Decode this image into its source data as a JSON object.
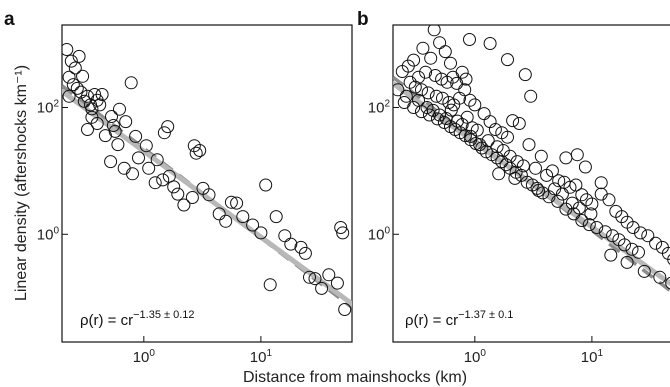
{
  "chart_data": [
    {
      "type": "scatter",
      "panel": "a",
      "xscale": "log",
      "yscale": "log",
      "xlim": [
        0.2,
        60
      ],
      "ylim": [
        0.02,
        2000
      ],
      "xticks": [
        {
          "value": 1,
          "base": "10",
          "exp": "0"
        },
        {
          "value": 10,
          "base": "10",
          "exp": "1"
        }
      ],
      "yticks": [
        {
          "value": 1,
          "base": "10",
          "exp": "0"
        },
        {
          "value": 100,
          "base": "10",
          "exp": "2"
        }
      ],
      "points": [
        [
          0.22,
          820
        ],
        [
          0.24,
          540
        ],
        [
          0.26,
          420
        ],
        [
          0.23,
          300
        ],
        [
          0.28,
          640
        ],
        [
          0.3,
          310
        ],
        [
          0.25,
          230
        ],
        [
          0.27,
          200
        ],
        [
          0.23,
          150
        ],
        [
          0.29,
          175
        ],
        [
          0.31,
          125
        ],
        [
          0.33,
          150
        ],
        [
          0.35,
          110
        ],
        [
          0.36,
          95
        ],
        [
          0.38,
          160
        ],
        [
          0.4,
          130
        ],
        [
          0.42,
          110
        ],
        [
          0.44,
          160
        ],
        [
          0.36,
          70
        ],
        [
          0.33,
          45
        ],
        [
          0.4,
          56
        ],
        [
          0.47,
          36
        ],
        [
          0.53,
          72
        ],
        [
          0.57,
          42
        ],
        [
          0.62,
          94
        ],
        [
          0.7,
          60
        ],
        [
          0.78,
          245
        ],
        [
          0.85,
          35
        ],
        [
          0.6,
          26
        ],
        [
          0.52,
          14
        ],
        [
          0.68,
          11
        ],
        [
          0.8,
          9
        ],
        [
          0.9,
          16
        ],
        [
          1.05,
          25
        ],
        [
          1.3,
          15
        ],
        [
          1.5,
          40
        ],
        [
          1.6,
          50
        ],
        [
          1.25,
          6.5
        ],
        [
          1.45,
          7.2
        ],
        [
          1.65,
          8.2
        ],
        [
          1.8,
          5.6
        ],
        [
          1.95,
          4.3
        ],
        [
          2.2,
          2.9
        ],
        [
          2.6,
          3.8
        ],
        [
          2.7,
          25
        ],
        [
          2.8,
          19
        ],
        [
          3.0,
          21
        ],
        [
          3.2,
          5.3
        ],
        [
          3.6,
          4.2
        ],
        [
          4.4,
          2.1
        ],
        [
          5.0,
          1.6
        ],
        [
          5.6,
          3.2
        ],
        [
          6.2,
          3.1
        ],
        [
          7.0,
          1.9
        ],
        [
          8.5,
          1.4
        ],
        [
          10.0,
          1.05
        ],
        [
          11.0,
          6.0
        ],
        [
          12.0,
          0.16
        ],
        [
          13.5,
          1.9
        ],
        [
          16.0,
          0.95
        ],
        [
          18.0,
          0.7
        ],
        [
          22.0,
          0.62
        ],
        [
          24.0,
          0.5
        ],
        [
          26.0,
          0.21
        ],
        [
          29.0,
          0.2
        ],
        [
          33.0,
          0.14
        ],
        [
          38.0,
          0.23
        ],
        [
          45.0,
          0.17
        ],
        [
          48.0,
          1.28
        ],
        [
          50.0,
          1.05
        ],
        [
          52.0,
          0.065
        ],
        [
          0.55,
          52
        ],
        [
          1.1,
          11
        ]
      ],
      "fit_solid": {
        "points": [
          [
            0.2,
            180
          ],
          [
            60,
            0.08
          ]
        ]
      },
      "fit_dashed": {
        "points": [
          [
            0.2,
            220
          ],
          [
            60,
            0.07
          ]
        ]
      },
      "formula": {
        "lhs": "ρ(r) = cr",
        "exp": "−1.35 ± 0.12"
      }
    },
    {
      "type": "scatter",
      "panel": "b",
      "xscale": "log",
      "yscale": "log",
      "xlim": [
        0.2,
        60
      ],
      "ylim": [
        0.02,
        2000
      ],
      "xticks": [
        {
          "value": 1,
          "base": "10",
          "exp": "0"
        },
        {
          "value": 10,
          "base": "10",
          "exp": "1"
        }
      ],
      "yticks": [
        {
          "value": 1,
          "base": "10",
          "exp": "0"
        },
        {
          "value": 100,
          "base": "10",
          "exp": "2"
        }
      ],
      "points": [
        [
          0.45,
          1680
        ],
        [
          0.5,
          1050
        ],
        [
          0.36,
          860
        ],
        [
          0.42,
          600
        ],
        [
          0.56,
          760
        ],
        [
          0.62,
          500
        ],
        [
          0.9,
          1180
        ],
        [
          1.35,
          1020
        ],
        [
          0.3,
          560
        ],
        [
          0.27,
          450
        ],
        [
          0.24,
          370
        ],
        [
          0.33,
          300
        ],
        [
          0.38,
          360
        ],
        [
          0.46,
          320
        ],
        [
          0.52,
          280
        ],
        [
          0.58,
          250
        ],
        [
          0.65,
          300
        ],
        [
          0.7,
          240
        ],
        [
          0.78,
          360
        ],
        [
          0.84,
          280
        ],
        [
          0.28,
          250
        ],
        [
          0.31,
          210
        ],
        [
          0.35,
          190
        ],
        [
          0.4,
          170
        ],
        [
          0.47,
          150
        ],
        [
          0.53,
          140
        ],
        [
          0.6,
          120
        ],
        [
          0.66,
          110
        ],
        [
          0.74,
          140
        ],
        [
          0.82,
          190
        ],
        [
          0.91,
          130
        ],
        [
          1.0,
          110
        ],
        [
          0.22,
          190
        ],
        [
          0.26,
          150
        ],
        [
          0.33,
          130
        ],
        [
          0.39,
          100
        ],
        [
          0.44,
          90
        ],
        [
          0.5,
          76
        ],
        [
          0.57,
          67
        ],
        [
          0.63,
          91
        ],
        [
          0.71,
          61
        ],
        [
          0.78,
          54
        ],
        [
          0.86,
          70
        ],
        [
          0.95,
          48
        ],
        [
          1.05,
          44
        ],
        [
          1.2,
          80
        ],
        [
          1.35,
          60
        ],
        [
          1.5,
          45
        ],
        [
          1.7,
          40
        ],
        [
          1.9,
          34
        ],
        [
          2.1,
          62
        ],
        [
          2.4,
          56
        ],
        [
          0.92,
          35
        ],
        [
          1.1,
          26
        ],
        [
          1.3,
          30
        ],
        [
          1.55,
          24
        ],
        [
          1.75,
          21
        ],
        [
          2.0,
          17
        ],
        [
          2.3,
          14
        ],
        [
          2.6,
          12
        ],
        [
          2.9,
          26
        ],
        [
          3.3,
          11
        ],
        [
          3.7,
          17
        ],
        [
          4.1,
          8.5
        ],
        [
          4.6,
          10
        ],
        [
          5.2,
          7
        ],
        [
          5.8,
          6.6
        ],
        [
          6.5,
          5.5
        ],
        [
          7.3,
          6
        ],
        [
          8.2,
          4.2
        ],
        [
          9.0,
          3.5
        ],
        [
          10.0,
          3
        ],
        [
          1.6,
          9
        ],
        [
          2.2,
          7.6
        ],
        [
          2.8,
          6.6
        ],
        [
          3.5,
          4.9
        ],
        [
          4.3,
          3.9
        ],
        [
          5.1,
          3.3
        ],
        [
          6.0,
          2.5
        ],
        [
          7.0,
          2.1
        ],
        [
          8.2,
          1.65
        ],
        [
          9.5,
          1.42
        ],
        [
          11.0,
          1.28
        ],
        [
          13.0,
          1.1
        ],
        [
          15.0,
          0.95
        ],
        [
          17.0,
          0.82
        ],
        [
          19.0,
          0.68
        ],
        [
          22.0,
          0.58
        ],
        [
          25.0,
          0.52
        ],
        [
          12.0,
          4.3
        ],
        [
          14.0,
          3.5
        ],
        [
          16.0,
          2.3
        ],
        [
          18.0,
          1.9
        ],
        [
          20.0,
          1.55
        ],
        [
          22.5,
          1.28
        ],
        [
          26.0,
          1.05
        ],
        [
          30.0,
          0.95
        ],
        [
          35.0,
          0.72
        ],
        [
          40.0,
          0.62
        ],
        [
          45.0,
          0.5
        ],
        [
          50.0,
          0.4
        ],
        [
          55.0,
          0.32
        ],
        [
          14.5,
          0.47
        ],
        [
          20.0,
          0.36
        ],
        [
          28.0,
          0.26
        ],
        [
          38.0,
          0.21
        ],
        [
          48.0,
          0.17
        ],
        [
          55.0,
          0.12
        ],
        [
          8.8,
          11.5
        ],
        [
          55.0,
          7.8
        ],
        [
          2.7,
          330
        ],
        [
          3.0,
          150
        ],
        [
          1.9,
          570
        ],
        [
          6.0,
          16
        ],
        [
          7.5,
          18
        ],
        [
          12.0,
          6.5
        ],
        [
          57.0,
          0.065
        ],
        [
          0.25,
          120
        ],
        [
          0.3,
          100
        ],
        [
          0.35,
          86
        ],
        [
          0.41,
          76
        ],
        [
          0.48,
          66
        ],
        [
          0.55,
          58
        ],
        [
          0.62,
          50
        ],
        [
          0.68,
          45
        ],
        [
          0.75,
          40
        ],
        [
          0.83,
          36
        ],
        [
          0.92,
          31
        ],
        [
          1.02,
          27
        ],
        [
          1.15,
          23
        ],
        [
          1.25,
          20
        ],
        [
          1.4,
          18
        ],
        [
          1.55,
          16
        ],
        [
          1.7,
          14
        ],
        [
          1.85,
          12.5
        ],
        [
          2.0,
          11
        ],
        [
          2.25,
          9.5
        ],
        [
          2.5,
          8.5
        ],
        [
          3.1,
          6
        ],
        [
          3.4,
          5.3
        ],
        [
          3.8,
          4.5
        ],
        [
          4.8,
          5.2
        ],
        [
          5.6,
          4.3
        ],
        [
          6.8,
          3.1
        ],
        [
          7.8,
          2.6
        ],
        [
          9.8,
          2.1
        ]
      ],
      "fit_solid": {
        "points": [
          [
            0.2,
            240
          ],
          [
            60,
            0.12
          ]
        ]
      },
      "fit_dashed": {
        "points": [
          [
            0.2,
            300
          ],
          [
            60,
            0.09
          ]
        ]
      },
      "formula": {
        "lhs": "ρ(r) = cr",
        "exp": "−1.37 ± 0.1"
      }
    }
  ],
  "labels": {
    "ylabel": "Linear density (aftershocks km⁻¹)",
    "xlabel": "Distance from mainshocks (km)"
  },
  "style": {
    "fit_solid_color": "#b8b8b8",
    "fit_dashed_color": "#8c8c8c",
    "marker_color": "#111111"
  }
}
